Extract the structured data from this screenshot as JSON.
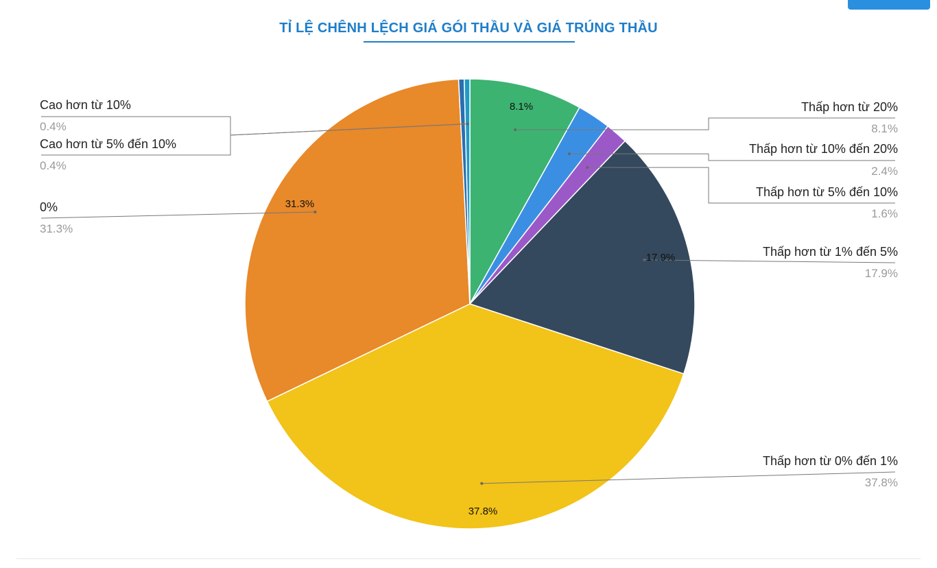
{
  "chart_data": {
    "type": "pie",
    "title": "TỈ LỆ CHÊNH LỆCH GIÁ GÓI THẦU VÀ GIÁ TRÚNG THẦU",
    "legend_placement": "labels-outside",
    "categories": [
      "Thấp hơn từ 20%",
      "Thấp hơn từ 10% đến 20%",
      "Thấp hơn từ 5% đến 10%",
      "Thấp hơn từ 1% đến 5%",
      "Thấp hơn từ 0% đến 1%",
      "0%",
      "Cao hơn từ 10%",
      "Cao hơn từ 5% đến 10%"
    ],
    "values": [
      8.1,
      2.4,
      1.6,
      17.9,
      37.8,
      31.3,
      0.4,
      0.4
    ],
    "value_labels": [
      "8.1%",
      "2.4%",
      "1.6%",
      "17.9%",
      "37.8%",
      "31.3%",
      "0.4%",
      "0.4%"
    ],
    "slice_labels": [
      "8.1%",
      "",
      "",
      "17.9%",
      "37.8%",
      "31.3%",
      "",
      ""
    ],
    "colors": [
      "#3cb371",
      "#3b8fe3",
      "#9b59c8",
      "#34495e",
      "#f2c318",
      "#e8892a",
      "#2a6fb0",
      "#1f9bc4"
    ]
  }
}
